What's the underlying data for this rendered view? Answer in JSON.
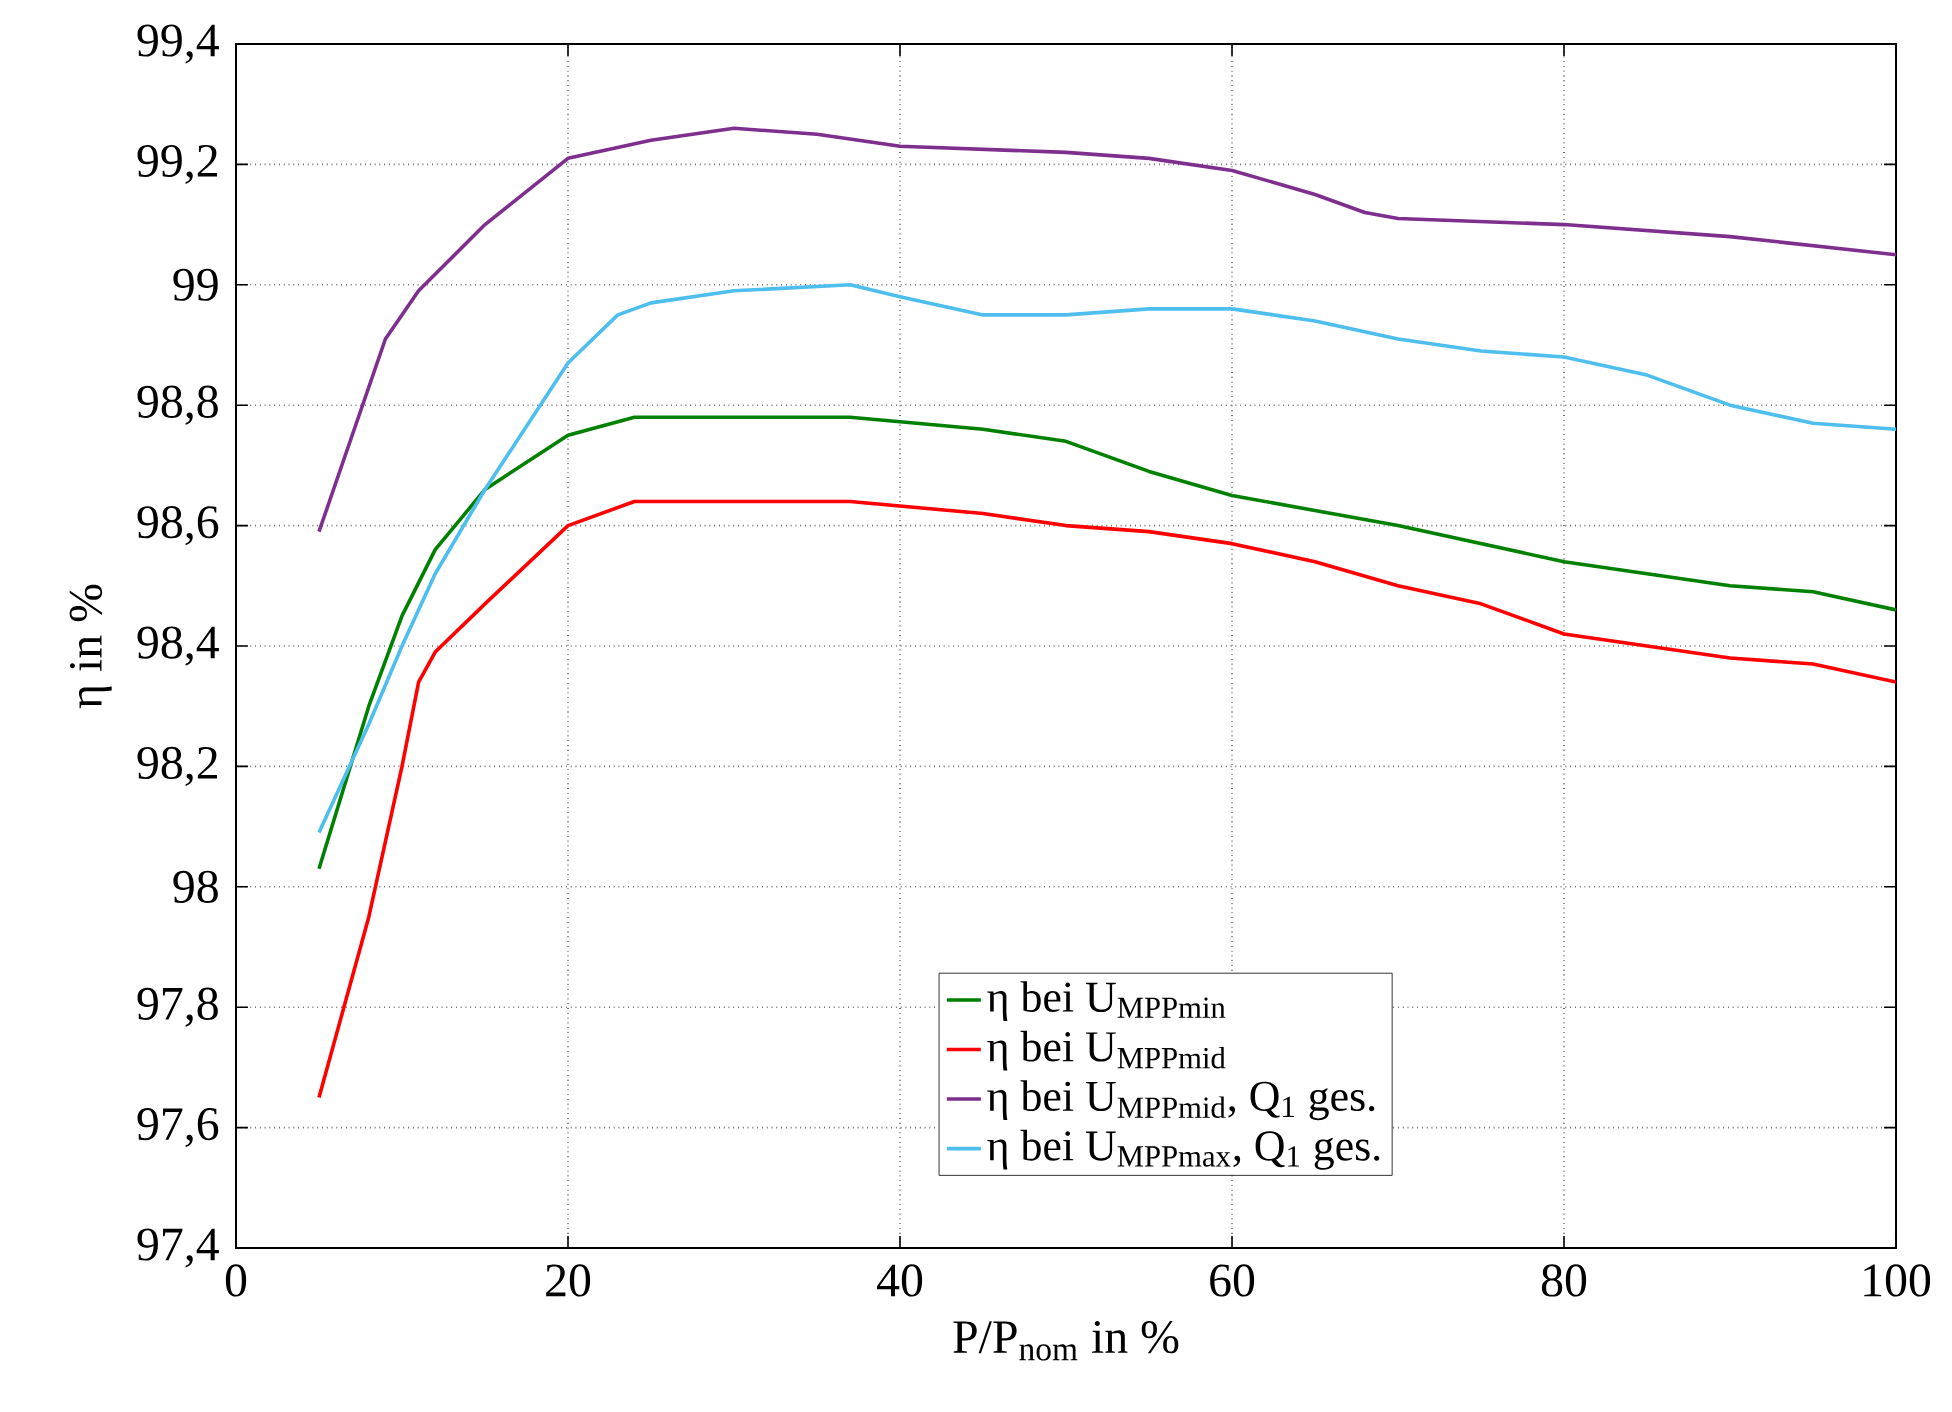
{
  "chart_data": {
    "type": "line",
    "xlabel": "P/P$_{nom}$ in %",
    "ylabel": "η in %",
    "xlim": [
      0,
      100
    ],
    "xticks": [
      0,
      20,
      40,
      60,
      80,
      100
    ],
    "ylim": [
      97.4,
      99.4
    ],
    "yticks": [
      {
        "value": 97.4,
        "label": "97,4"
      },
      {
        "value": 97.6,
        "label": "97,6"
      },
      {
        "value": 97.8,
        "label": "97,8"
      },
      98,
      {
        "value": 98.2,
        "label": "98,2"
      },
      {
        "value": 98.4,
        "label": "98,4"
      },
      {
        "value": 98.6,
        "label": "98,6"
      },
      {
        "value": 98.8,
        "label": "98,8"
      },
      99,
      {
        "value": 99.2,
        "label": "99,2"
      },
      {
        "value": 99.4,
        "label": "99,4"
      }
    ],
    "grid": true,
    "legend": "bottom",
    "line_style": "solid",
    "series": [
      {
        "name": "η bei U$_{MPPmin}$",
        "color": "#008000",
        "x": [
          5,
          8,
          10,
          12,
          15,
          20,
          24,
          30,
          37,
          45,
          50,
          55,
          60,
          70,
          80,
          85,
          90,
          95,
          100
        ],
        "values": [
          98.03,
          98.3,
          98.45,
          98.56,
          98.66,
          98.75,
          98.78,
          98.78,
          98.78,
          98.76,
          98.74,
          98.69,
          98.65,
          98.6,
          98.54,
          98.52,
          98.5,
          98.49,
          98.46
        ]
      },
      {
        "name": "η bei U$_{MPPmid}$",
        "color": "#ff0000",
        "x": [
          5,
          8,
          10,
          11,
          12,
          15,
          20,
          24,
          30,
          37,
          45,
          50,
          55,
          60,
          65,
          70,
          75,
          80,
          85,
          90,
          95,
          100
        ],
        "values": [
          97.65,
          97.95,
          98.2,
          98.34,
          98.39,
          98.47,
          98.6,
          98.64,
          98.64,
          98.64,
          98.62,
          98.6,
          98.59,
          98.57,
          98.54,
          98.5,
          98.47,
          98.42,
          98.4,
          98.38,
          98.37,
          98.34
        ]
      },
      {
        "name": "η bei U$_{MPPmid}$, Q$_{1}$ ges.",
        "color": "#7e2f8e",
        "x": [
          5,
          7,
          9,
          11,
          15,
          20,
          25,
          30,
          35,
          40,
          50,
          55,
          60,
          65,
          68,
          70,
          80,
          90,
          100
        ],
        "values": [
          98.59,
          98.75,
          98.91,
          98.99,
          99.1,
          99.21,
          99.24,
          99.26,
          99.25,
          99.23,
          99.22,
          99.21,
          99.19,
          99.15,
          99.12,
          99.11,
          99.1,
          99.08,
          99.05
        ]
      },
      {
        "name": "η bei U$_{MPPmax}$, Q$_{1}$ ges.",
        "color": "#4dbeee",
        "x": [
          5,
          8,
          10,
          12,
          15,
          20,
          23,
          25,
          30,
          37,
          40,
          45,
          50,
          55,
          60,
          65,
          70,
          75,
          80,
          85,
          90,
          95,
          100
        ],
        "values": [
          98.09,
          98.27,
          98.4,
          98.52,
          98.66,
          98.87,
          98.95,
          98.97,
          98.99,
          99.0,
          98.98,
          98.95,
          98.95,
          98.96,
          98.96,
          98.94,
          98.91,
          98.89,
          98.88,
          98.85,
          98.8,
          98.77,
          98.76
        ]
      }
    ]
  }
}
